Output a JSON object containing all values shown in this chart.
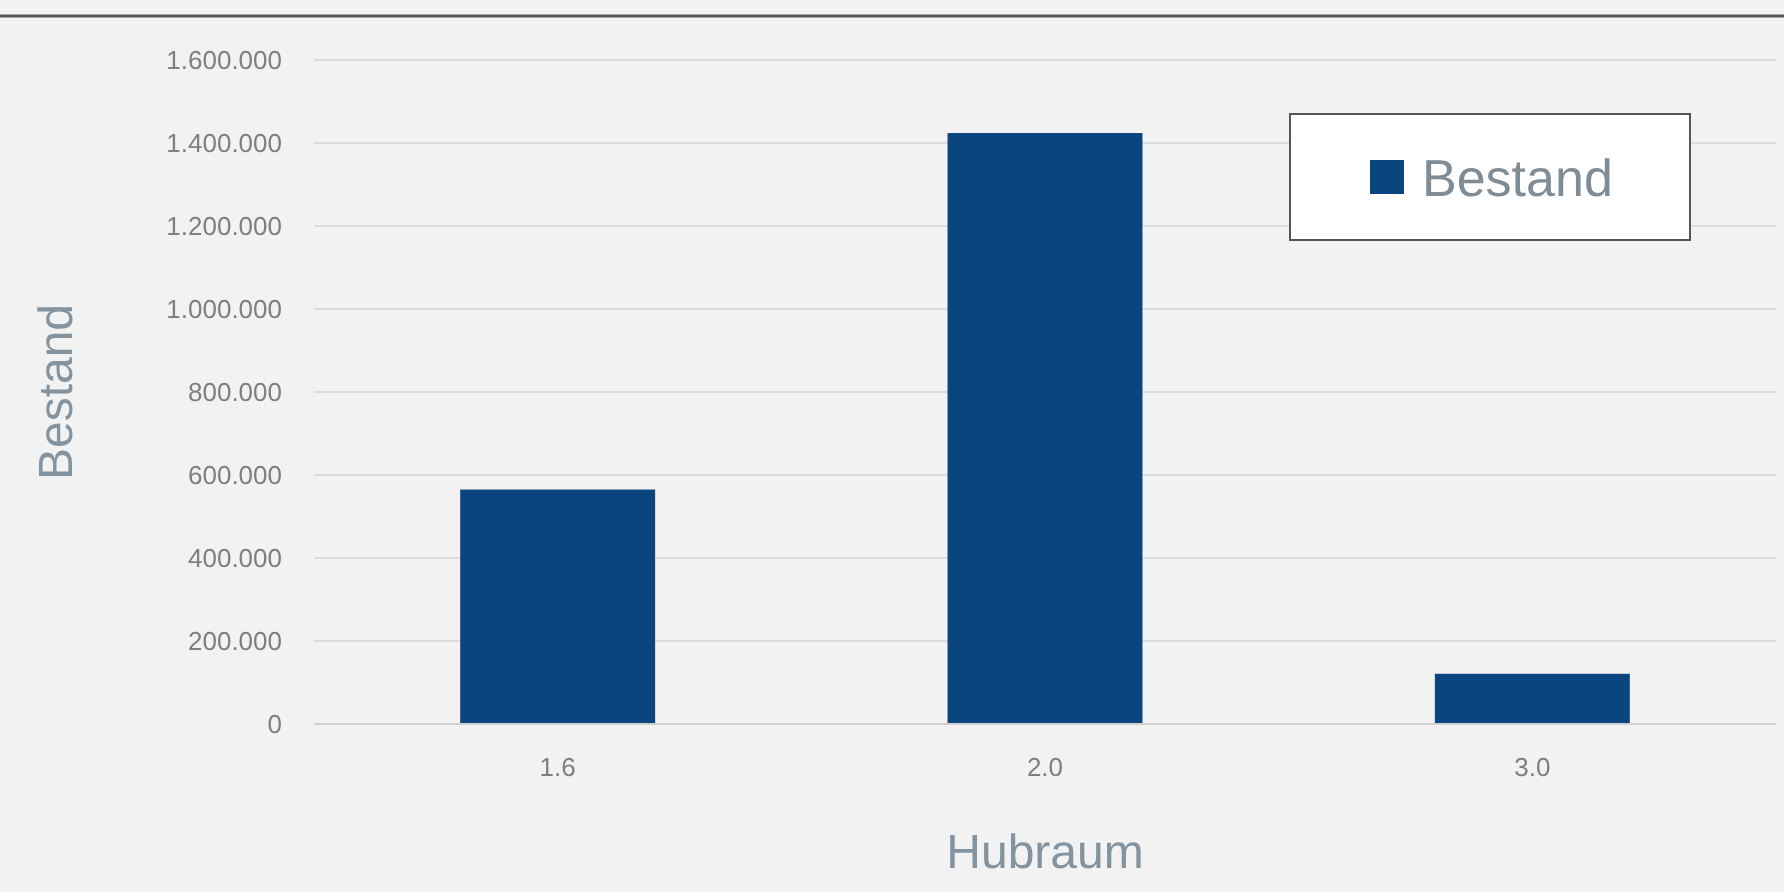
{
  "chart_data": {
    "type": "bar",
    "xlabel": "Hubraum",
    "ylabel": "Bestand",
    "categories": [
      "1.6",
      "2.0",
      "3.0"
    ],
    "series": [
      {
        "name": "Bestand",
        "color": "#0b4580",
        "values": [
          565000,
          1424000,
          121000
        ]
      }
    ],
    "ylim": [
      0,
      1600000
    ],
    "yticks": [
      0,
      {
        "value": 200000,
        "label": "200.000"
      },
      {
        "value": 400000,
        "label": "400.000"
      },
      {
        "value": 600000,
        "label": "600.000"
      },
      {
        "value": 800000,
        "label": "800.000"
      },
      {
        "value": 1000000,
        "label": "1.000.000"
      },
      {
        "value": 1200000,
        "label": "1.200.000"
      },
      {
        "value": 1400000,
        "label": "1.400.000"
      },
      {
        "value": 1600000,
        "label": "1.600.000"
      }
    ],
    "grid": "y",
    "legend": "top right"
  }
}
